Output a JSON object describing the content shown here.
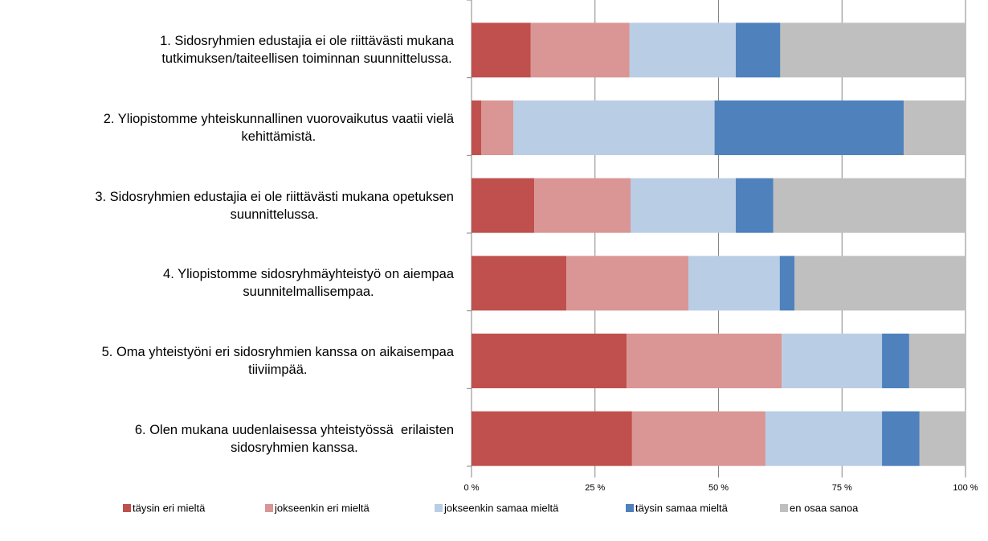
{
  "chart_data": {
    "type": "stacked_barh",
    "categories": [
      "1. Sidosryhmien edustajia ei ole riittävästi mukana\ntutkimuksen/taiteellisen toiminnan suunnittelussa.",
      "2. Yliopistomme yhteiskunnallinen vuorovaikutus vaatii vielä\nkehittämistä.",
      "3. Sidosryhmien edustajia ei ole riittävästi mukana opetuksen\nsuunnittelussa.",
      "4. Yliopistomme sidosryhmäyhteistyö on aiempaa\nsuunnitelmallisempaa.",
      "5. Oma yhteistyöni eri sidosryhmien kanssa on aikaisempaa\ntiiviimpää.",
      "6. Olen mukana uudenlaisessa yhteistyössä  erilaisten\nsidosryhmien kanssa."
    ],
    "series": [
      {
        "name": "täysin eri mieltä",
        "color": "#c0504d",
        "values": [
          12,
          2,
          12.7,
          19.2,
          31.4,
          32.5
        ]
      },
      {
        "name": "jokseenkin eri mieltä",
        "color": "#d99694",
        "values": [
          20,
          6.5,
          19.5,
          24.7,
          31.4,
          27
        ]
      },
      {
        "name": "jokseenkin samaa mieltä",
        "color": "#b9cde5",
        "values": [
          21.5,
          40.7,
          21.3,
          18.5,
          20.3,
          23.6
        ]
      },
      {
        "name": "täysin samaa mieltä",
        "color": "#4f81bd",
        "values": [
          9,
          38.3,
          7.6,
          3,
          5.5,
          7.6
        ]
      },
      {
        "name": "en osaa sanoa",
        "color": "#bfbfbf",
        "values": [
          37.5,
          12.5,
          38.9,
          34.6,
          11.4,
          9.3
        ]
      }
    ],
    "xlim": [
      0,
      100
    ],
    "xticks": [
      {
        "value": 0,
        "label": "0 %"
      },
      {
        "value": 25,
        "label": "25 %"
      },
      {
        "value": 50,
        "label": "50 %"
      },
      {
        "value": 75,
        "label": "75 %"
      },
      {
        "value": 100,
        "label": "100 %"
      }
    ],
    "grid": true,
    "legend": "bottom"
  }
}
